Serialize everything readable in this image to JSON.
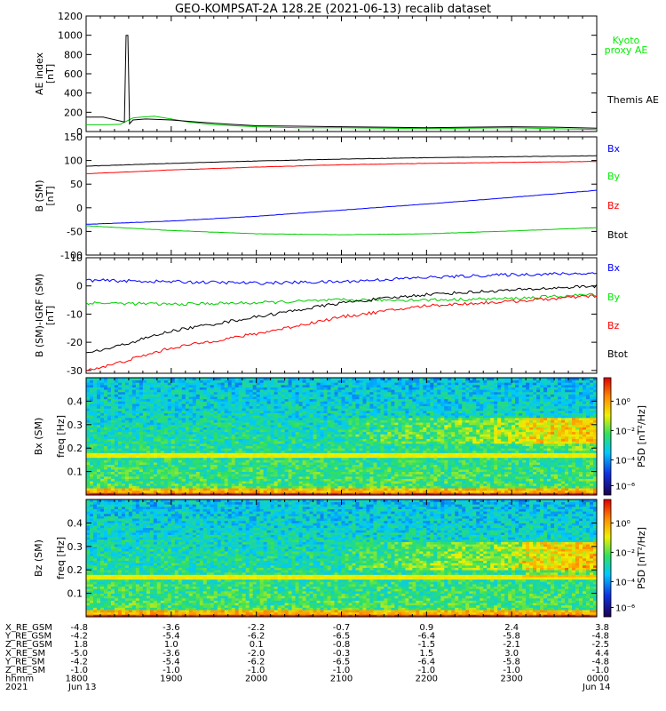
{
  "title": "GEO-KOMPSAT-2A 128.2E (2021-06-13) recalib dataset",
  "colors": {
    "black": "#000000",
    "blue": "#0000ff",
    "green": "#00cc00",
    "red": "#ff0000",
    "legend_green": "#00ee00"
  },
  "chart_data": [
    {
      "type": "line",
      "panel": "ae",
      "ylabel": "AE index",
      "unit": "[nT]",
      "ylim": [
        0,
        1200
      ],
      "yticks": [
        "0",
        "200",
        "400",
        "600",
        "800",
        "1000",
        "1200"
      ],
      "grid": false,
      "x_hours": [
        18,
        24
      ],
      "series": [
        {
          "name": "Kyoto proxy AE",
          "color": "#00cc00",
          "x": [
            18.0,
            18.2,
            18.4,
            18.55,
            18.65,
            18.8,
            19.0,
            19.2,
            19.5,
            20.0,
            20.5,
            21.0,
            21.5,
            22.0,
            22.5,
            23.0,
            23.5,
            23.8,
            24.0
          ],
          "values": [
            70,
            70,
            75,
            140,
            150,
            160,
            130,
            100,
            70,
            50,
            40,
            40,
            35,
            30,
            35,
            40,
            30,
            25,
            20
          ]
        },
        {
          "name": "Themis AE",
          "color": "#000000",
          "x": [
            18.0,
            18.2,
            18.45,
            18.47,
            18.49,
            18.51,
            18.55,
            18.7,
            19.0,
            19.3,
            19.6,
            20.0,
            20.5,
            21.0,
            21.5,
            22.0,
            22.5,
            23.0,
            23.5,
            24.0
          ],
          "values": [
            150,
            150,
            100,
            1000,
            1000,
            80,
            120,
            130,
            120,
            100,
            80,
            60,
            55,
            50,
            45,
            40,
            45,
            50,
            45,
            35
          ]
        }
      ]
    },
    {
      "type": "line",
      "panel": "b",
      "ylabel": "B (SM)",
      "unit": "[nT]",
      "ylim": [
        -100,
        150
      ],
      "yticks": [
        "-100",
        "-50",
        "0",
        "50",
        "100",
        "150"
      ],
      "grid": false,
      "x_hours": [
        18,
        24
      ],
      "series": [
        {
          "name": "Bx",
          "color": "#0000ff",
          "x": [
            18,
            19,
            20,
            21,
            22,
            23,
            24
          ],
          "values": [
            -35,
            -28,
            -18,
            -5,
            8,
            22,
            37
          ]
        },
        {
          "name": "By",
          "color": "#00cc00",
          "x": [
            18,
            19,
            20,
            21,
            22,
            23,
            24
          ],
          "values": [
            -38,
            -48,
            -55,
            -57,
            -55,
            -49,
            -42
          ]
        },
        {
          "name": "Bz",
          "color": "#ff0000",
          "x": [
            18,
            19,
            20,
            21,
            22,
            23,
            24
          ],
          "values": [
            72,
            80,
            86,
            91,
            94,
            96,
            98
          ]
        },
        {
          "name": "Btot",
          "color": "#000000",
          "x": [
            18,
            19,
            20,
            21,
            22,
            23,
            24
          ],
          "values": [
            88,
            94,
            99,
            103,
            106,
            108,
            110
          ]
        }
      ]
    },
    {
      "type": "line",
      "panel": "db",
      "ylabel": "B (SM)-IGRF (SM)",
      "unit": "[nT]",
      "ylim": [
        -31,
        10
      ],
      "yticks": [
        "-30",
        "-20",
        "-10",
        "0",
        "10"
      ],
      "grid": false,
      "x_hours": [
        18,
        24
      ],
      "series": [
        {
          "name": "Bx",
          "color": "#0000ff",
          "x": [
            18,
            19,
            20,
            21,
            22,
            23,
            24
          ],
          "values": [
            2,
            1.5,
            1,
            1.5,
            3,
            4,
            4.5
          ]
        },
        {
          "name": "By",
          "color": "#00cc00",
          "x": [
            18,
            19,
            20,
            21,
            22,
            23,
            24
          ],
          "values": [
            -6,
            -6.5,
            -6,
            -5,
            -5,
            -4.5,
            -3
          ]
        },
        {
          "name": "Bz",
          "color": "#ff0000",
          "x": [
            18,
            18.3,
            19,
            20,
            21,
            22,
            23,
            24
          ],
          "values": [
            -30,
            -28,
            -22,
            -17,
            -11,
            -7,
            -5.5,
            -3.5
          ]
        },
        {
          "name": "Btot",
          "color": "#000000",
          "x": [
            18,
            18.3,
            19,
            20,
            21,
            22,
            23,
            24
          ],
          "values": [
            -24,
            -22,
            -16,
            -11,
            -6,
            -3,
            -1.5,
            0
          ]
        }
      ]
    },
    {
      "type": "heatmap",
      "panel": "spec_bx",
      "ylabel": "Bx (SM)",
      "ylabel2": "freq [Hz]",
      "ylim": [
        0,
        0.5
      ],
      "yticks": [
        "0.1",
        "0.2",
        "0.3",
        "0.4"
      ],
      "colorbar_label": "PSD [nT²/Hz]",
      "colorbar_ticks": [
        "10⁰",
        "10⁻²",
        "10⁻⁴",
        "10⁻⁶"
      ],
      "features": {
        "line_freq": 0.17,
        "enhancement_band": [
          0.22,
          0.33
        ]
      }
    },
    {
      "type": "heatmap",
      "panel": "spec_bz",
      "ylabel": "Bz (SM)",
      "ylabel2": "freq [Hz]",
      "ylim": [
        0,
        0.5
      ],
      "yticks": [
        "0.1",
        "0.2",
        "0.3",
        "0.4"
      ],
      "colorbar_label": "PSD [nT²/Hz]",
      "colorbar_ticks": [
        "10⁰",
        "10⁻²",
        "10⁻⁴",
        "10⁻⁶"
      ],
      "features": {
        "line_freq": 0.17,
        "enhancement_band": [
          0.2,
          0.32
        ]
      }
    }
  ],
  "ephemeris": {
    "rows": [
      {
        "label": "X_RE_GSM",
        "values": [
          "-4.8",
          "-3.6",
          "-2.2",
          "-0.7",
          "0.9",
          "2.4",
          "3.8"
        ]
      },
      {
        "label": "Y_RE_GSM",
        "values": [
          "-4.2",
          "-5.4",
          "-6.2",
          "-6.5",
          "-6.4",
          "-5.8",
          "-4.8"
        ]
      },
      {
        "label": "Z_RE_GSM",
        "values": [
          "1.8",
          "1.0",
          "0.1",
          "-0.8",
          "-1.5",
          "-2.1",
          "-2.5"
        ]
      },
      {
        "label": "X_RE_SM",
        "values": [
          "-5.0",
          "-3.6",
          "-2.0",
          "-0.3",
          "1.5",
          "3.0",
          "4.4"
        ]
      },
      {
        "label": "Y_RE_SM",
        "values": [
          "-4.2",
          "-5.4",
          "-6.2",
          "-6.5",
          "-6.4",
          "-5.8",
          "-4.8"
        ]
      },
      {
        "label": "Z_RE_SM",
        "values": [
          "-1.0",
          "-1.0",
          "-1.0",
          "-1.0",
          "-1.0",
          "-1.0",
          "-1.0"
        ]
      },
      {
        "label": "hhmm",
        "values": [
          "1800",
          "1900",
          "2000",
          "2100",
          "2200",
          "2300",
          "0000"
        ]
      }
    ],
    "year_label": "2021",
    "dates": [
      "Jun 13",
      "Jun 14"
    ]
  }
}
